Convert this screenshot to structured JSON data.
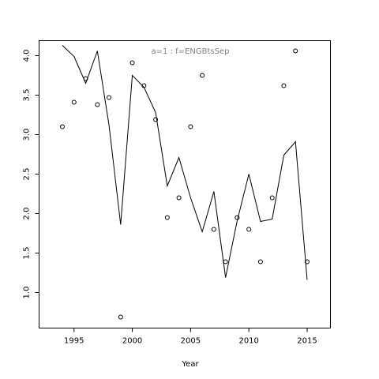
{
  "chart_data": {
    "type": "line",
    "title": "a=1  :  f=ENGBtsSep",
    "xlabel": "Year",
    "ylabel": "",
    "xlim": [
      1992,
      2017
    ],
    "ylim": [
      0.55,
      4.19
    ],
    "x_ticks": [
      1995,
      2000,
      2005,
      2010,
      2015
    ],
    "y_ticks": [
      1.0,
      1.5,
      2.0,
      2.5,
      3.0,
      3.5,
      4.0
    ],
    "grid": false,
    "series": [
      {
        "style": "line",
        "x": [
          1994,
          1995,
          1996,
          1997,
          1998,
          1999,
          2000,
          2001,
          2002,
          2003,
          2004,
          2005,
          2006,
          2007,
          2008,
          2009,
          2010,
          2011,
          2012,
          2013,
          2014,
          2015
        ],
        "y": [
          4.13,
          3.99,
          3.65,
          4.06,
          3.12,
          1.86,
          3.75,
          3.6,
          3.28,
          2.35,
          2.71,
          2.2,
          1.77,
          2.28,
          1.19,
          1.91,
          2.5,
          1.9,
          1.93,
          2.74,
          2.91,
          1.16
        ]
      },
      {
        "style": "points",
        "x": [
          1994,
          1995,
          1996,
          1997,
          1998,
          1999,
          2000,
          2001,
          2002,
          2003,
          2004,
          2005,
          2006,
          2007,
          2008,
          2009,
          2010,
          2011,
          2012,
          2013,
          2014,
          2015
        ],
        "y": [
          3.1,
          3.41,
          3.71,
          3.38,
          3.47,
          0.69,
          3.91,
          3.62,
          3.19,
          1.95,
          2.2,
          3.1,
          3.75,
          1.8,
          1.39,
          1.95,
          1.8,
          1.39,
          2.2,
          3.62,
          4.06,
          1.39
        ]
      }
    ]
  }
}
